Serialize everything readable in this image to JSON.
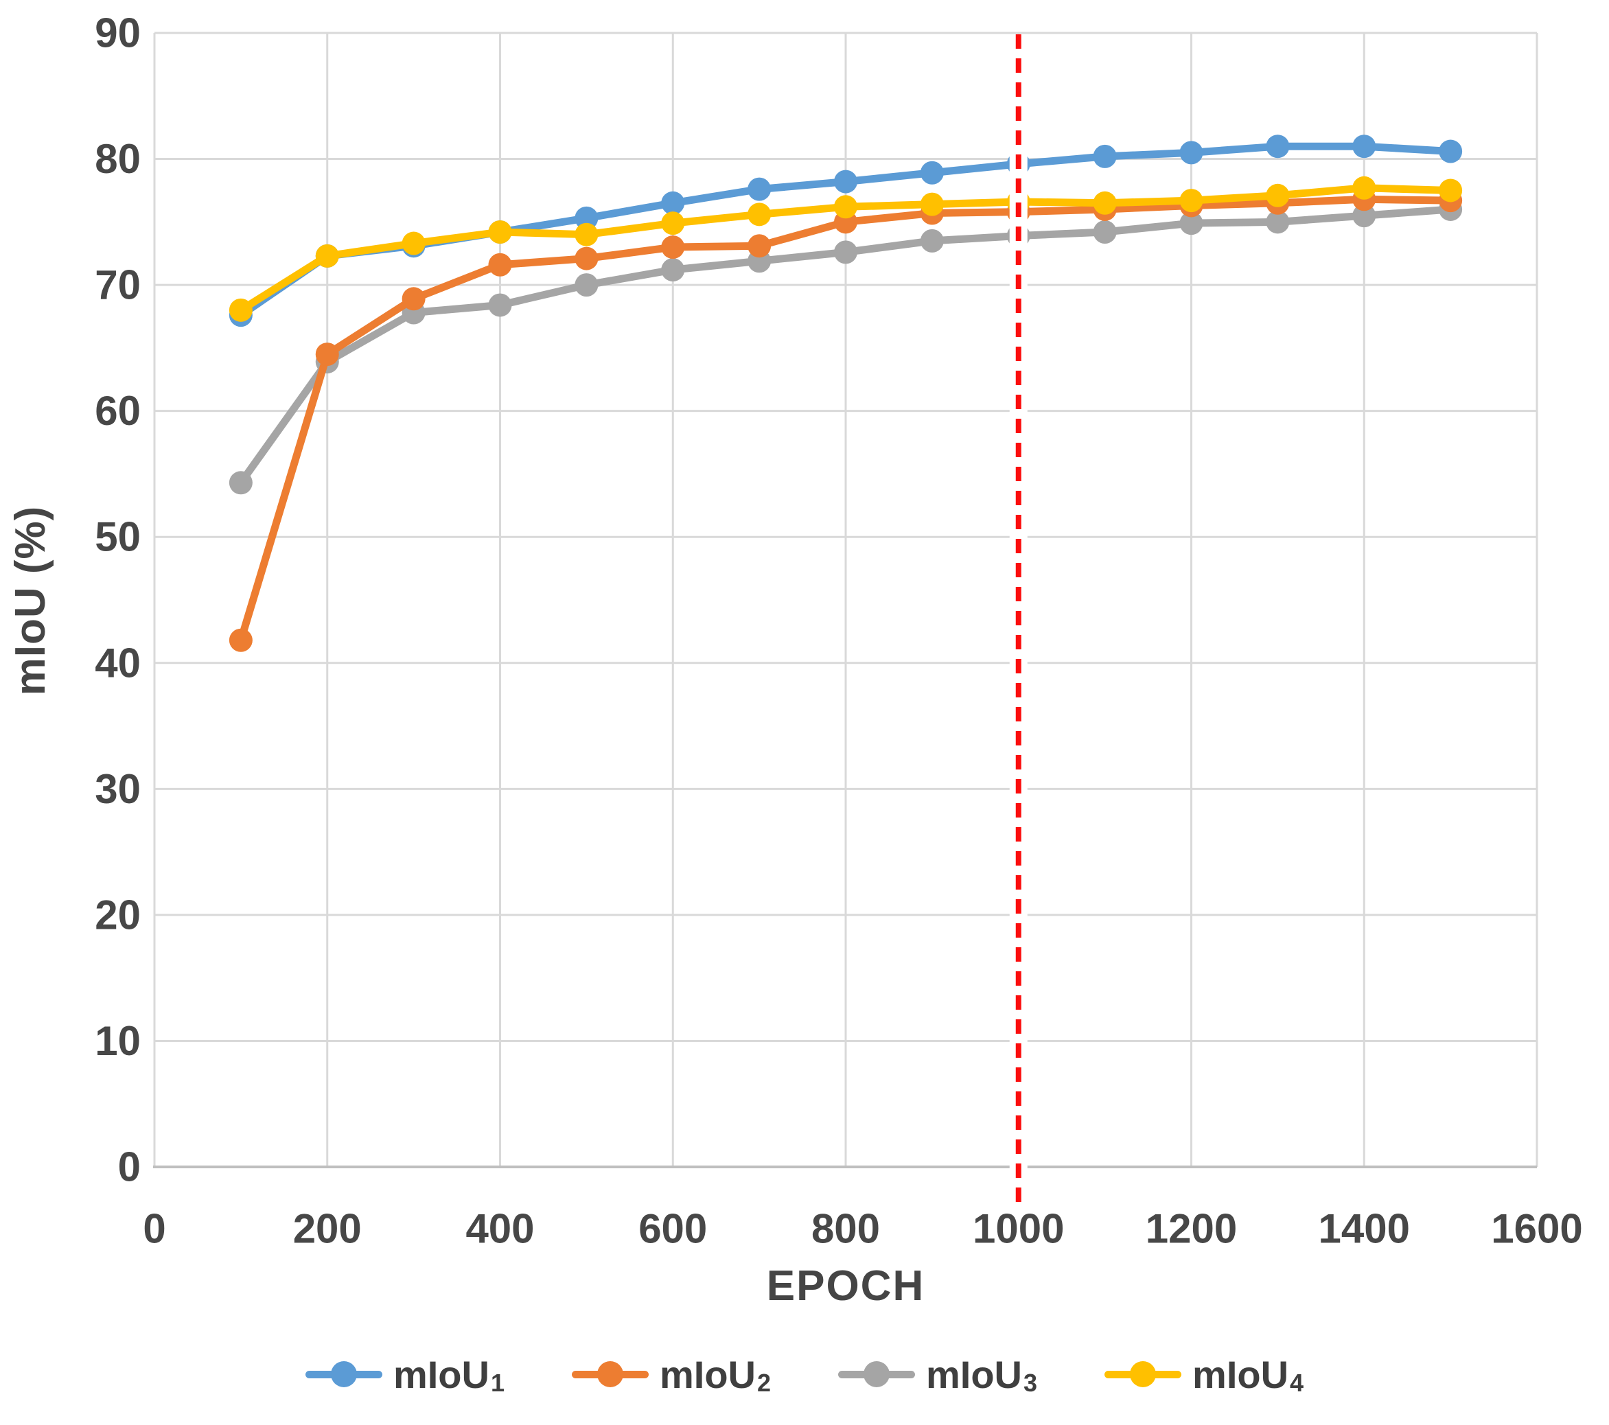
{
  "chart_data": {
    "type": "line",
    "title": "",
    "xlabel": "EPOCH",
    "ylabel": "mIoU (%)",
    "xlim": [
      0,
      1600
    ],
    "ylim": [
      0,
      90
    ],
    "x_ticks": [
      0,
      200,
      400,
      600,
      800,
      1000,
      1200,
      1400,
      1600
    ],
    "y_ticks": [
      0,
      10,
      20,
      30,
      40,
      50,
      60,
      70,
      80,
      90
    ],
    "grid": true,
    "legend_position": "bottom-center",
    "x": [
      100,
      200,
      300,
      400,
      500,
      600,
      700,
      800,
      900,
      1000,
      1100,
      1200,
      1300,
      1400,
      1500
    ],
    "series": [
      {
        "id": "miou1",
        "label": "mIoU₁",
        "label_base": "mIoU",
        "label_sub": "1",
        "color": "#5B9BD5",
        "values": [
          67.6,
          72.3,
          73.1,
          74.2,
          75.3,
          76.5,
          77.6,
          78.2,
          78.9,
          79.6,
          80.2,
          80.5,
          81.0,
          81.0,
          80.6
        ]
      },
      {
        "id": "miou2",
        "label": "mIoU₂",
        "label_base": "mIoU",
        "label_sub": "2",
        "color": "#ED7D31",
        "values": [
          41.8,
          64.5,
          68.9,
          71.6,
          72.1,
          73.0,
          73.1,
          75.0,
          75.7,
          75.8,
          76.0,
          76.3,
          76.5,
          76.8,
          76.7
        ]
      },
      {
        "id": "miou3",
        "label": "mIoU₃",
        "label_base": "mIoU",
        "label_sub": "3",
        "color": "#A5A5A5",
        "values": [
          54.3,
          63.9,
          67.8,
          68.4,
          70.0,
          71.2,
          71.9,
          72.6,
          73.5,
          73.9,
          74.2,
          74.9,
          75.0,
          75.5,
          76.0
        ]
      },
      {
        "id": "miou4",
        "label": "mIoU₄",
        "label_base": "mIoU",
        "label_sub": "4",
        "color": "#FFC000",
        "values": [
          68.0,
          72.3,
          73.3,
          74.2,
          74.0,
          74.9,
          75.6,
          76.2,
          76.4,
          76.6,
          76.5,
          76.7,
          77.1,
          77.7,
          77.5
        ]
      }
    ],
    "draw_order": [
      "miou1",
      "miou3",
      "miou2",
      "miou4"
    ],
    "annotations": [
      {
        "type": "vline",
        "x": 1000,
        "color": "#FB0D0D",
        "style": "dashed",
        "halo": "#FFFFFF"
      }
    ]
  },
  "styles": {
    "background": "#FFFFFF",
    "grid_color": "#D9D9D9",
    "axis_line_color": "#BFBFBF",
    "tick_text_color": "#474747",
    "title_text_color": "#454545",
    "legend_text_color": "#3F3F3F"
  }
}
